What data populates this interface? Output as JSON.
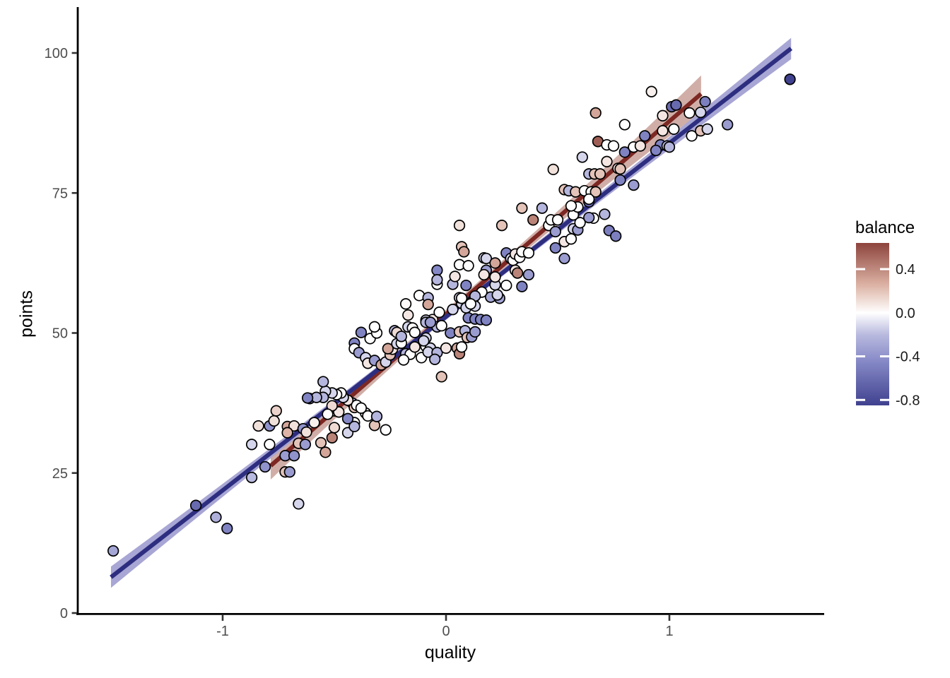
{
  "axes": {
    "x": {
      "label": "quality",
      "tick_values": [
        -1,
        0,
        1
      ],
      "tick_labels": [
        "-1",
        "0",
        "1"
      ],
      "range": [
        -1.65,
        1.69
      ]
    },
    "y": {
      "label": "points",
      "tick_values": [
        0,
        25,
        50,
        75,
        100
      ],
      "tick_labels": [
        "0",
        "25",
        "50",
        "75",
        "100"
      ],
      "range": [
        0,
        108
      ]
    }
  },
  "legend": {
    "title": "balance",
    "tick_values": [
      0.4,
      0.0,
      -0.4,
      -0.8
    ],
    "tick_labels": [
      "0.4",
      "0.0",
      "-0.4",
      "-0.8"
    ],
    "range": [
      -0.85,
      0.64
    ]
  },
  "style": {
    "axis_line_color": "#000000",
    "tick_color": "#333333",
    "tick_label_color": "#4d4d4d",
    "point_stroke": "#000000",
    "blue_line_color": "#2d2e80",
    "blue_ribbon_color": "#a8a6d4",
    "red_line_color": "#7e2823",
    "red_ribbon_color": "#d0aea7"
  },
  "chart_data": {
    "type": "scatter",
    "title": "",
    "xlabel": "quality",
    "ylabel": "points",
    "color_variable": "balance",
    "grid": false,
    "xlim": [
      -1.65,
      1.69
    ],
    "ylim": [
      0,
      108
    ],
    "colormap_anchors": [
      [
        -0.85,
        "#40418f"
      ],
      [
        -0.45,
        "#8588c6"
      ],
      [
        -0.2,
        "#b9badf"
      ],
      [
        0.0,
        "#ffffff"
      ],
      [
        0.25,
        "#ddb4a6"
      ],
      [
        0.64,
        "#8d443d"
      ]
    ],
    "smooth_lines": [
      {
        "name": "red-fit",
        "x1": -0.785,
        "y1": 26.3,
        "x2": 1.142,
        "y2": 92.7,
        "ribbon": {
          "base": 0.8,
          "amp": 8.26,
          "center": 0.45
        }
      },
      {
        "name": "blue-fit",
        "x1": -1.5,
        "y1": 6.4,
        "x2": 1.545,
        "y2": 100.8,
        "ribbon": {
          "base": 0.55,
          "amp": 5.4,
          "center": 0.5
        }
      }
    ],
    "points": [
      [
        -1.49,
        11.1,
        -0.3
      ],
      [
        -1.12,
        19.2,
        -0.62
      ],
      [
        -1.03,
        17.1,
        -0.25
      ],
      [
        -0.98,
        15.1,
        -0.48
      ],
      [
        -0.66,
        19.5,
        -0.12
      ],
      [
        -0.87,
        24.2,
        -0.2
      ],
      [
        -0.81,
        26.1,
        -0.4
      ],
      [
        -0.72,
        25.2,
        0.2
      ],
      [
        -0.7,
        25.2,
        -0.35
      ],
      [
        -0.87,
        30.1,
        -0.12
      ],
      [
        -0.79,
        30.1,
        0
      ],
      [
        -0.84,
        33.4,
        0.1
      ],
      [
        -0.79,
        33.4,
        -0.4
      ],
      [
        -0.77,
        34.3,
        0.1
      ],
      [
        -0.76,
        36.1,
        0.15
      ],
      [
        -0.71,
        33.3,
        0.3
      ],
      [
        -0.68,
        33.4,
        0.1
      ],
      [
        -0.71,
        32.2,
        0.25
      ],
      [
        -0.72,
        28.1,
        -0.35
      ],
      [
        -0.68,
        28.1,
        -0.4
      ],
      [
        -0.64,
        32.9,
        -0.4
      ],
      [
        -0.625,
        32.3,
        0.1
      ],
      [
        -0.66,
        30.3,
        0.2
      ],
      [
        -0.63,
        30.1,
        -0.35
      ],
      [
        -0.61,
        38.3,
        -0.5
      ],
      [
        -0.56,
        30.4,
        0.2
      ],
      [
        -0.51,
        31.3,
        0.42
      ],
      [
        -0.54,
        28.7,
        0.3
      ],
      [
        -0.5,
        33.1,
        0.12
      ],
      [
        -0.59,
        34,
        0.05
      ],
      [
        -0.44,
        32.2,
        -0.12
      ],
      [
        -0.41,
        34,
        0
      ],
      [
        -0.41,
        33.3,
        -0.22
      ],
      [
        -0.32,
        33.5,
        0.2
      ],
      [
        -0.27,
        32.7,
        0
      ],
      [
        -0.44,
        34.7,
        -0.45
      ],
      [
        -0.5,
        36.1,
        0.08
      ],
      [
        -0.48,
        35.9,
        0.08
      ],
      [
        -0.51,
        37,
        0.12
      ],
      [
        -0.53,
        35.5,
        0
      ],
      [
        -0.36,
        35.7,
        0
      ],
      [
        -0.35,
        35.2,
        0
      ],
      [
        -0.31,
        35.1,
        -0.22
      ],
      [
        -0.42,
        37.5,
        -0.22
      ],
      [
        -0.41,
        36.7,
        0.2
      ],
      [
        -0.4,
        37.1,
        0
      ],
      [
        -0.38,
        36.6,
        0
      ],
      [
        -0.44,
        38,
        0.08
      ],
      [
        -0.46,
        38.5,
        -0.12
      ],
      [
        -0.47,
        39.3,
        0
      ],
      [
        -0.49,
        39,
        0
      ],
      [
        -0.51,
        39.3,
        -0.12
      ],
      [
        -0.54,
        39.6,
        -0.12
      ],
      [
        -0.55,
        38.5,
        -0.22
      ],
      [
        -0.58,
        38.5,
        -0.22
      ],
      [
        -0.62,
        38.4,
        -0.48
      ],
      [
        -0.55,
        41.3,
        -0.22
      ],
      [
        -0.41,
        48.2,
        -0.48
      ],
      [
        -0.41,
        47.2,
        0
      ],
      [
        -0.39,
        46.5,
        -0.35
      ],
      [
        -0.36,
        45.6,
        -0.12
      ],
      [
        -0.35,
        44.6,
        0.08
      ],
      [
        -0.32,
        45.1,
        -0.35
      ],
      [
        -0.29,
        44.3,
        0.3
      ],
      [
        -0.27,
        44.8,
        -0.12
      ],
      [
        -0.25,
        46.1,
        0.2
      ],
      [
        -0.24,
        47.1,
        0.08
      ],
      [
        -0.26,
        47.2,
        0.3
      ],
      [
        -0.22,
        48.1,
        -0.12
      ],
      [
        -0.2,
        48.2,
        0
      ],
      [
        -0.18,
        46.3,
        -0.22
      ],
      [
        -0.16,
        46.2,
        0
      ],
      [
        -0.19,
        45.2,
        0
      ],
      [
        -0.14,
        47.5,
        0.08
      ],
      [
        -0.11,
        45.6,
        0
      ],
      [
        -0.02,
        42.2,
        0.2
      ],
      [
        -0.09,
        47.6,
        0
      ],
      [
        -0.07,
        47.3,
        -0.12
      ],
      [
        -0.08,
        46.6,
        -0.12
      ],
      [
        -0.04,
        46.5,
        -0.22
      ],
      [
        -0.05,
        45.3,
        -0.22
      ],
      [
        0,
        47.3,
        0.08
      ],
      [
        0.05,
        47.3,
        0.3
      ],
      [
        0.06,
        46.3,
        0.42
      ],
      [
        0.07,
        47.5,
        0
      ],
      [
        -0.09,
        49.1,
        -0.12
      ],
      [
        -0.1,
        48.6,
        -0.12
      ],
      [
        -0.06,
        52.4,
        0.08
      ],
      [
        -0.09,
        52.3,
        -0.12
      ],
      [
        -0.04,
        51.1,
        -0.22
      ],
      [
        -0.34,
        49,
        0
      ],
      [
        -0.31,
        50,
        0
      ],
      [
        -0.32,
        51.1,
        0
      ],
      [
        -0.38,
        50.1,
        -0.48
      ],
      [
        -0.23,
        50.4,
        -0.22
      ],
      [
        -0.22,
        50.1,
        0.12
      ],
      [
        -0.2,
        49.4,
        -0.22
      ],
      [
        -0.17,
        51.1,
        -0.12
      ],
      [
        -0.15,
        50.9,
        0
      ],
      [
        -0.14,
        50.1,
        0
      ],
      [
        -0.17,
        53.2,
        0.08
      ],
      [
        -0.18,
        55.2,
        0.02
      ],
      [
        -0.12,
        56.7,
        0
      ],
      [
        -0.08,
        56.3,
        -0.22
      ],
      [
        -0.08,
        55.1,
        0.3
      ],
      [
        -0.09,
        51.9,
        -0.22
      ],
      [
        -0.07,
        51.9,
        -0.35
      ],
      [
        -0.02,
        51.3,
        0
      ],
      [
        -0.03,
        53.7,
        0
      ],
      [
        0.03,
        54.2,
        -0.12
      ],
      [
        0.02,
        50,
        -0.48
      ],
      [
        0.06,
        50.2,
        0.2
      ],
      [
        0.085,
        50.4,
        -0.22
      ],
      [
        0.095,
        49.2,
        0.2
      ],
      [
        0.115,
        49.3,
        -0.35
      ],
      [
        0.13,
        50.2,
        -0.35
      ],
      [
        0.1,
        52.7,
        -0.48
      ],
      [
        0.13,
        52.5,
        -0.48
      ],
      [
        0.155,
        52.4,
        -0.48
      ],
      [
        0.18,
        52.3,
        -0.48
      ],
      [
        0.07,
        55.3,
        -0.12
      ],
      [
        0.09,
        54.5,
        -0.12
      ],
      [
        0.12,
        55.7,
        0
      ],
      [
        0.13,
        54.8,
        -0.12
      ],
      [
        0.06,
        56.3,
        -0.12
      ],
      [
        0.07,
        56.2,
        0
      ],
      [
        -0.04,
        58.7,
        0
      ],
      [
        0.03,
        58.7,
        -0.22
      ],
      [
        0.09,
        58.5,
        -0.48
      ],
      [
        0.22,
        58.6,
        -0.12
      ],
      [
        0.27,
        58.5,
        0
      ],
      [
        0.34,
        58.3,
        -0.48
      ],
      [
        0.16,
        57.3,
        0
      ],
      [
        0.2,
        56.4,
        -0.3
      ],
      [
        0.24,
        56.2,
        -0.3
      ],
      [
        0.13,
        56.6,
        -0.22
      ],
      [
        0.11,
        55.2,
        0
      ],
      [
        0.23,
        56.8,
        -0.12
      ],
      [
        -0.04,
        61.2,
        -0.45
      ],
      [
        -0.04,
        59.5,
        -0.22
      ],
      [
        0.04,
        60.1,
        0.08
      ],
      [
        0.06,
        62.2,
        0
      ],
      [
        0.1,
        62,
        0
      ],
      [
        0.07,
        65.4,
        0.2
      ],
      [
        0.08,
        64.5,
        0.3
      ],
      [
        0.06,
        69.2,
        0.1
      ],
      [
        0.25,
        69.2,
        0.2
      ],
      [
        0.17,
        63.4,
        -0.12
      ],
      [
        0.18,
        63.3,
        -0.12
      ],
      [
        0.18,
        61.2,
        -0.35
      ],
      [
        0.17,
        60.4,
        0.08
      ],
      [
        0.22,
        62.5,
        0.3
      ],
      [
        0.22,
        60,
        0.08
      ],
      [
        0.27,
        64.3,
        -0.48
      ],
      [
        0.29,
        63.3,
        -0.12
      ],
      [
        0.3,
        63,
        0
      ],
      [
        0.31,
        64.1,
        0.08
      ],
      [
        0.33,
        63.5,
        0
      ],
      [
        0.34,
        64.5,
        0
      ],
      [
        0.37,
        64.3,
        0
      ],
      [
        0.31,
        61.2,
        0.08
      ],
      [
        0.32,
        60.7,
        0.42
      ],
      [
        0.37,
        60.4,
        -0.35
      ],
      [
        0.34,
        72.3,
        0.2
      ],
      [
        0.43,
        72.3,
        -0.22
      ],
      [
        0.39,
        70.2,
        0.42
      ],
      [
        0.46,
        69.2,
        0
      ],
      [
        0.47,
        70.2,
        0
      ],
      [
        0.5,
        70.2,
        0
      ],
      [
        0.49,
        68.1,
        -0.35
      ],
      [
        0.57,
        71.1,
        0
      ],
      [
        0.59,
        72.5,
        0
      ],
      [
        0.64,
        73.4,
        -0.62
      ],
      [
        0.57,
        68.6,
        -0.12
      ],
      [
        0.59,
        68.4,
        -0.35
      ],
      [
        0.6,
        69.7,
        0
      ],
      [
        0.66,
        70.5,
        0
      ],
      [
        0.71,
        71.2,
        -0.22
      ],
      [
        0.53,
        66.3,
        0.08
      ],
      [
        0.56,
        66.8,
        0
      ],
      [
        0.49,
        65.2,
        -0.48
      ],
      [
        0.53,
        63.3,
        -0.35
      ],
      [
        0.73,
        68.3,
        -0.5
      ],
      [
        0.76,
        67.3,
        -0.5
      ],
      [
        0.56,
        72.7,
        0
      ],
      [
        0.64,
        70.6,
        -0.35
      ],
      [
        0.53,
        75.6,
        0.2
      ],
      [
        0.55,
        75.4,
        -0.22
      ],
      [
        0.58,
        75.2,
        0.2
      ],
      [
        0.62,
        75.4,
        0
      ],
      [
        0.65,
        75.2,
        0
      ],
      [
        0.67,
        75.2,
        0.2
      ],
      [
        0.64,
        73.9,
        0
      ],
      [
        0.48,
        79.2,
        0.1
      ],
      [
        0.64,
        78.4,
        -0.22
      ],
      [
        0.665,
        78.4,
        0.2
      ],
      [
        0.69,
        78.4,
        0.2
      ],
      [
        0.72,
        80.6,
        0.08
      ],
      [
        0.77,
        79.4,
        0.08
      ],
      [
        0.78,
        79.3,
        0.2
      ],
      [
        0.78,
        77.3,
        -0.48
      ],
      [
        0.84,
        76.4,
        -0.35
      ],
      [
        0.61,
        81.4,
        -0.12
      ],
      [
        0.68,
        84.2,
        0.55
      ],
      [
        0.72,
        83.6,
        0
      ],
      [
        0.75,
        83.4,
        0
      ],
      [
        0.8,
        82.3,
        -0.48
      ],
      [
        0.84,
        83.2,
        0
      ],
      [
        0.87,
        83.4,
        0.08
      ],
      [
        0.8,
        87.2,
        0
      ],
      [
        0.67,
        89.3,
        0.3
      ],
      [
        0.89,
        85.2,
        -0.48
      ],
      [
        0.97,
        86.1,
        0.08
      ],
      [
        1.02,
        86.4,
        0
      ],
      [
        0.96,
        83.6,
        -0.48
      ],
      [
        0.99,
        83.4,
        -0.22
      ],
      [
        0.94,
        82.6,
        -0.48
      ],
      [
        1,
        83.2,
        -0.22
      ],
      [
        1.1,
        85.2,
        0
      ],
      [
        1.14,
        86.1,
        0.2
      ],
      [
        1.17,
        86.4,
        -0.12
      ],
      [
        0.92,
        93.1,
        0.05
      ],
      [
        1.01,
        90.4,
        -0.62
      ],
      [
        1.03,
        90.7,
        -0.62
      ],
      [
        1.16,
        91.3,
        -0.5
      ],
      [
        1.09,
        89.3,
        0
      ],
      [
        1.14,
        89.4,
        -0.12
      ],
      [
        0.97,
        88.8,
        0.08
      ],
      [
        1.26,
        87.2,
        -0.35
      ],
      [
        1.54,
        95.3,
        -0.85
      ]
    ]
  }
}
